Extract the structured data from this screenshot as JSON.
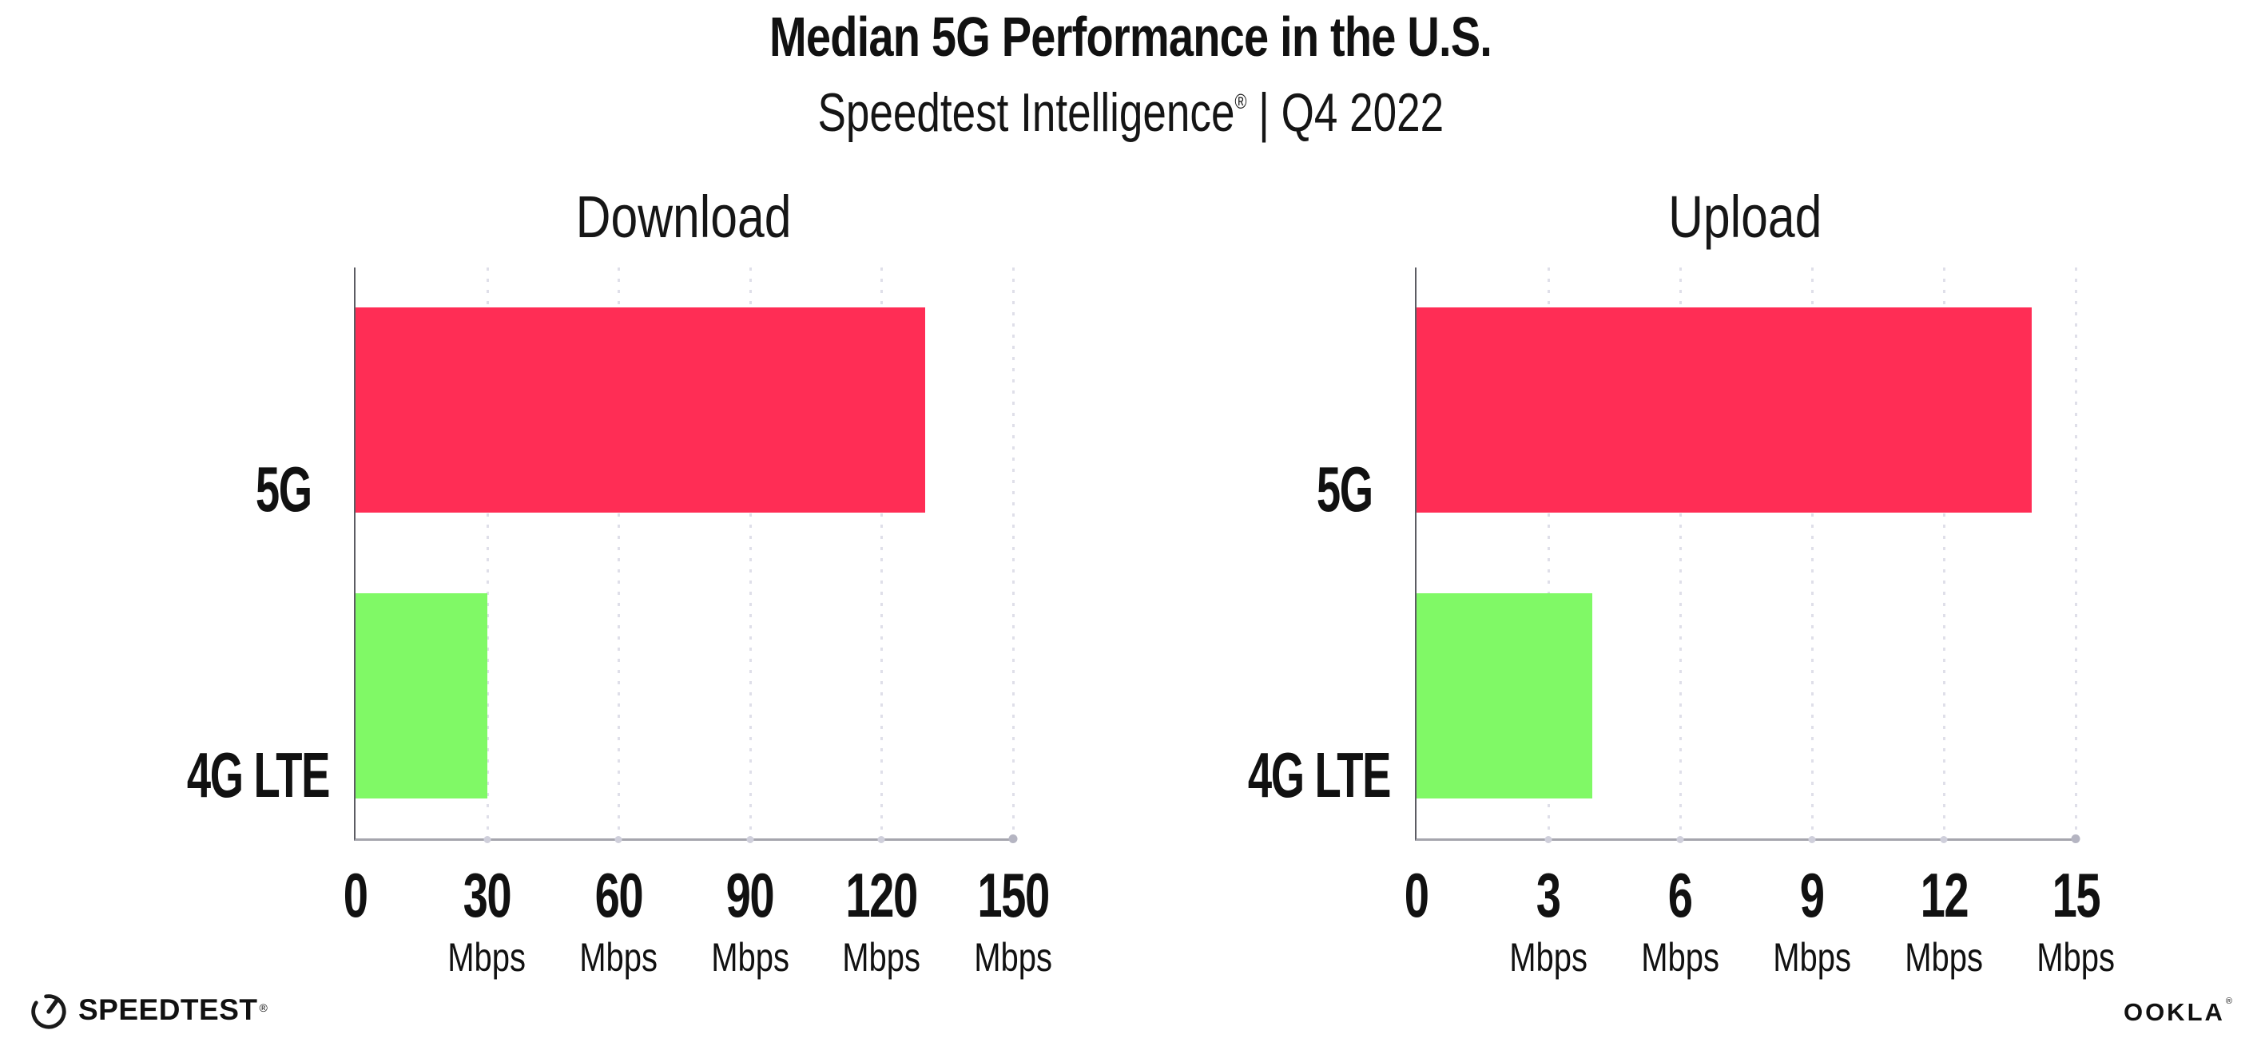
{
  "header": {
    "title": "Median 5G Performance in the U.S.",
    "subtitle_brand": "Speedtest Intelligence",
    "subtitle_reg": "®",
    "subtitle_rest": " | Q4 2022"
  },
  "chart_data": [
    {
      "type": "bar",
      "orientation": "horizontal",
      "title": "Download",
      "categories": [
        "5G",
        "4G LTE"
      ],
      "values": [
        130,
        30
      ],
      "unit": "Mbps",
      "xlim": [
        0,
        150
      ],
      "xticks": [
        0,
        30,
        60,
        90,
        120,
        150
      ],
      "colors": [
        "#FF2D55",
        "#80F966"
      ],
      "grid": "dotted-vertical",
      "legend": "none",
      "ticks": [
        {
          "label": "0",
          "unit": ""
        },
        {
          "label": "30",
          "unit": "Mbps"
        },
        {
          "label": "60",
          "unit": "Mbps"
        },
        {
          "label": "90",
          "unit": "Mbps"
        },
        {
          "label": "120",
          "unit": "Mbps"
        },
        {
          "label": "150",
          "unit": "Mbps"
        }
      ]
    },
    {
      "type": "bar",
      "orientation": "horizontal",
      "title": "Upload",
      "categories": [
        "5G",
        "4G LTE"
      ],
      "values": [
        14,
        4
      ],
      "unit": "Mbps",
      "xlim": [
        0,
        15
      ],
      "xticks": [
        0,
        3,
        6,
        9,
        12,
        15
      ],
      "colors": [
        "#FF2D55",
        "#80F966"
      ],
      "grid": "dotted-vertical",
      "legend": "none",
      "ticks": [
        {
          "label": "0",
          "unit": ""
        },
        {
          "label": "3",
          "unit": "Mbps"
        },
        {
          "label": "6",
          "unit": "Mbps"
        },
        {
          "label": "9",
          "unit": "Mbps"
        },
        {
          "label": "12",
          "unit": "Mbps"
        },
        {
          "label": "15",
          "unit": "Mbps"
        }
      ]
    }
  ],
  "footer": {
    "speedtest_label": "SPEEDTEST",
    "speedtest_reg": "®",
    "ookla_label": "OOKLA",
    "ookla_reg": "®"
  },
  "colors": {
    "bar_5g": "#FF2D55",
    "bar_4g_lte": "#80F966",
    "gridline": "#DFDFE9",
    "x_axis": "#A5A5AD",
    "y_axis": "#5C5C63",
    "text": "#111111",
    "background": "#FFFFFF"
  }
}
